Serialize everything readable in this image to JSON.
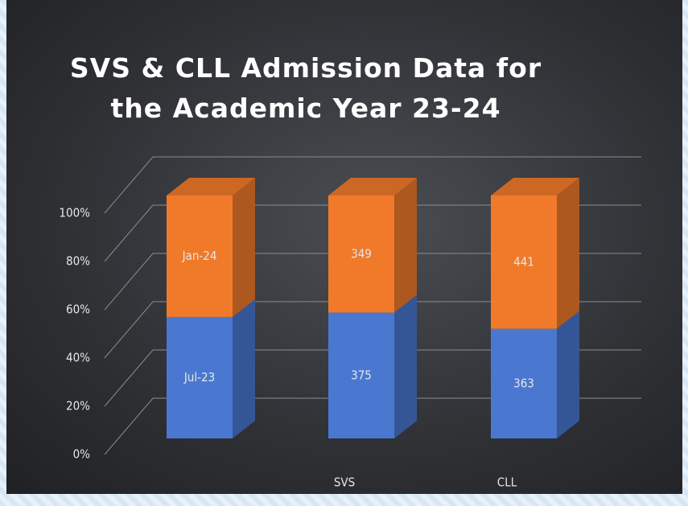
{
  "chart_data": {
    "type": "bar",
    "stacked": "percent",
    "title": "SVS & CLL Admission Data for the Academic Year 23-24",
    "categories": [
      "SVS",
      "CLL"
    ],
    "series": [
      {
        "name": "Jul-23",
        "color": "#4a78d0",
        "values": [
          375,
          363
        ]
      },
      {
        "name": "Jan-24",
        "color": "#f07a2a",
        "values": [
          349,
          441
        ]
      }
    ],
    "ylim": [
      0,
      100
    ],
    "yticks": [
      {
        "value": 0,
        "label": "0%"
      },
      {
        "value": 20,
        "label": "20%"
      },
      {
        "value": 40,
        "label": "40%"
      },
      {
        "value": 60,
        "label": "60%"
      },
      {
        "value": 80,
        "label": "80%"
      },
      {
        "value": 100,
        "label": "100%"
      }
    ],
    "grid": true
  }
}
